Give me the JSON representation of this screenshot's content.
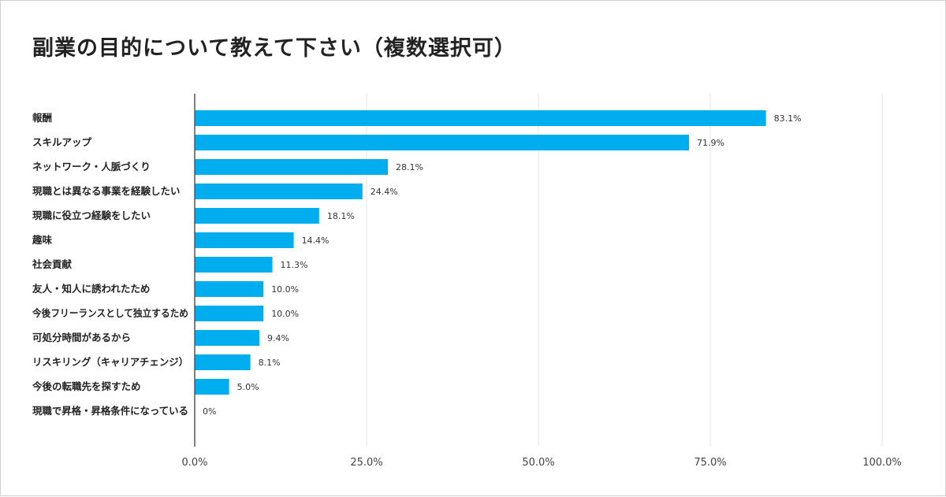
{
  "chart_data": {
    "type": "bar",
    "orientation": "horizontal",
    "title": "副業の目的について教えて下さい（複数選択可）",
    "categories": [
      "報酬",
      "スキルアップ",
      "ネットワーク・人脈づくり",
      "現職とは異なる事業を経験したい",
      "現職に役立つ経験をしたい",
      "趣味",
      "社会貢献",
      "友人・知人に誘われたため",
      "今後フリーランスとして独立するため",
      "可処分時間があるから",
      "リスキリング（キャリアチェンジ）",
      "今後の転職先を探すため",
      "現職で昇格・昇格条件になっている"
    ],
    "values": [
      83.1,
      71.9,
      28.1,
      24.4,
      18.1,
      14.4,
      11.3,
      10.0,
      10.0,
      9.4,
      8.1,
      5.0,
      0
    ],
    "value_labels": [
      "83.1%",
      "71.9%",
      "28.1%",
      "24.4%",
      "18.1%",
      "14.4%",
      "11.3%",
      "10.0%",
      "10.0%",
      "9.4%",
      "8.1%",
      "5.0%",
      "0%"
    ],
    "xlim": [
      0,
      100
    ],
    "xticks": [
      0,
      25,
      50,
      75,
      100
    ],
    "xtick_labels": [
      "0.0%",
      "25.0%",
      "50.0%",
      "75.0%",
      "100.0%"
    ],
    "bar_color": "#00aeef",
    "grid": true
  }
}
